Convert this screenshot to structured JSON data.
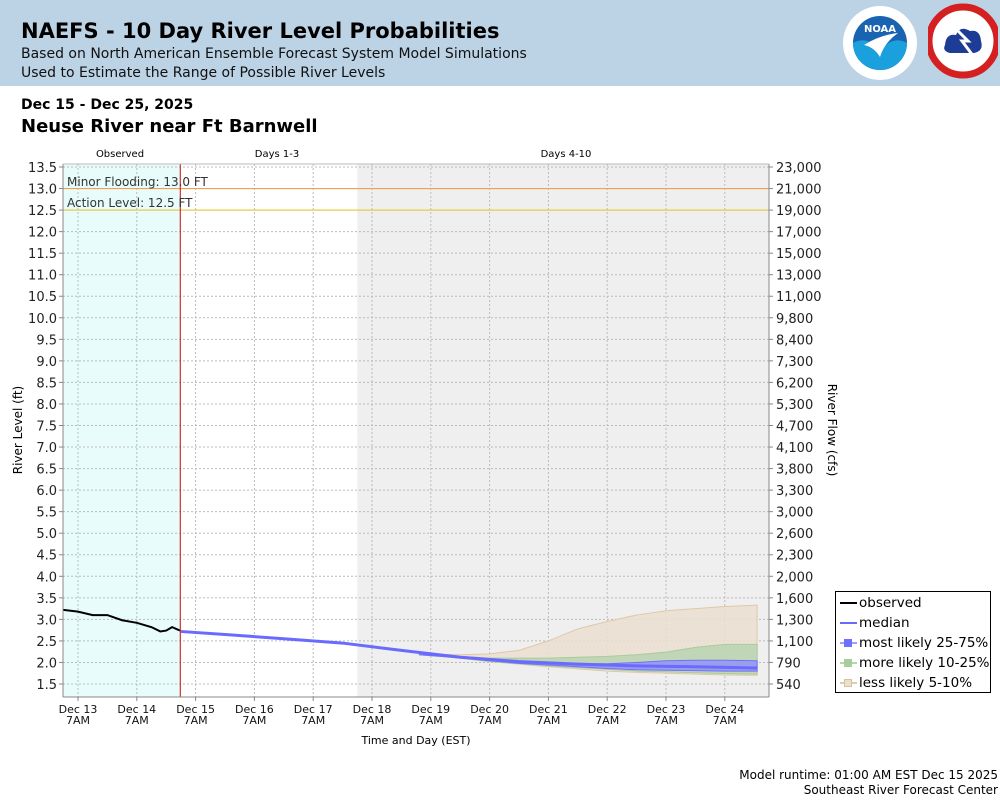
{
  "header": {
    "title": "NAEFS - 10 Day River Level Probabilities",
    "subtitle1": "Based on North American Ensemble Forecast System Model Simulations",
    "subtitle2": "Used to Estimate the Range of Possible River Levels",
    "logos": [
      "NOAA",
      "NATIONAL WEATHER SERVICE"
    ]
  },
  "date_range": "Dec 15 - Dec 25, 2025",
  "location": "Neuse River near Ft Barnwell",
  "footer": {
    "runtime": "Model runtime: 01:00 AM EST Dec 15 2025",
    "center": "Southeast River Forecast Center"
  },
  "colors": {
    "header_bg": "#bcd2e5",
    "observed_bg": "#e8fcfc",
    "days410_bg": "#efefef",
    "minor_flood": "#f0a050",
    "action": "#e8c840",
    "now_line": "#d03030",
    "observed": "#000000",
    "median": "#6a6aff",
    "band_25_75": "#8c8cff",
    "band_10_25": "#b8d4b0",
    "band_5_10": "#eadfd0"
  },
  "chart_data": {
    "type": "area",
    "title": "Neuse River near Ft Barnwell",
    "xlabel": "Time and Day (EST)",
    "ylabel": "River Level (ft)",
    "y2label": "River Flow (cfs)",
    "ylim": [
      1.2,
      13.57
    ],
    "grid": true,
    "legend_position": "bottom-right-outside",
    "section_labels": [
      "Observed",
      "Days 1-3",
      "Days 4-10"
    ],
    "x_ticks": [
      {
        "day": 0,
        "l1": "Dec 13",
        "l2": "7AM"
      },
      {
        "day": 1,
        "l1": "Dec 14",
        "l2": "7AM"
      },
      {
        "day": 2,
        "l1": "Dec 15",
        "l2": "7AM"
      },
      {
        "day": 3,
        "l1": "Dec 16",
        "l2": "7AM"
      },
      {
        "day": 4,
        "l1": "Dec 17",
        "l2": "7AM"
      },
      {
        "day": 5,
        "l1": "Dec 18",
        "l2": "7AM"
      },
      {
        "day": 6,
        "l1": "Dec 19",
        "l2": "7AM"
      },
      {
        "day": 7,
        "l1": "Dec 20",
        "l2": "7AM"
      },
      {
        "day": 8,
        "l1": "Dec 21",
        "l2": "7AM"
      },
      {
        "day": 9,
        "l1": "Dec 22",
        "l2": "7AM"
      },
      {
        "day": 10,
        "l1": "Dec 23",
        "l2": "7AM"
      },
      {
        "day": 11,
        "l1": "Dec 24",
        "l2": "7AM"
      }
    ],
    "y_ticks": [
      "13.5",
      "13.0",
      "12.5",
      "12.0",
      "11.5",
      "11.0",
      "10.5",
      "10.0",
      "9.5",
      "9.0",
      "8.5",
      "8.0",
      "7.5",
      "7.0",
      "6.5",
      "6.0",
      "5.5",
      "5.0",
      "4.5",
      "4.0",
      "3.5",
      "3.0",
      "2.5",
      "2.0",
      "1.5"
    ],
    "y2_ticks": [
      "23,000",
      "21,000",
      "19,000",
      "17,000",
      "15,000",
      "13,000",
      "11,000",
      "9,800",
      "8,400",
      "7,300",
      "6,200",
      "5,300",
      "4,700",
      "4,100",
      "3,800",
      "3,300",
      "3,000",
      "2,600",
      "2,300",
      "2,000",
      "1,600",
      "1,300",
      "1,100",
      "790",
      "540"
    ],
    "thresholds": [
      {
        "label": "Minor Flooding: 13.0 FT",
        "value": 13.0
      },
      {
        "label": "Action Level: 12.5 FT",
        "value": 12.5
      }
    ],
    "observed_end_day": 1.74,
    "days410_start_day": 4.75,
    "x_range_days": [
      -0.25,
      11.75
    ],
    "series": [
      {
        "name": "observed",
        "x": [
          -0.25,
          0.0,
          0.25,
          0.5,
          0.75,
          1.0,
          1.25,
          1.4,
          1.5,
          1.6,
          1.7,
          1.74
        ],
        "values": [
          3.22,
          3.18,
          3.1,
          3.1,
          2.98,
          2.92,
          2.82,
          2.72,
          2.74,
          2.82,
          2.76,
          2.74
        ]
      },
      {
        "name": "median",
        "x": [
          1.74,
          2.5,
          3.5,
          4.5,
          5.5,
          6.5,
          7.5,
          8.5,
          9.5,
          10.5,
          11.55
        ],
        "values": [
          2.72,
          2.65,
          2.55,
          2.45,
          2.28,
          2.12,
          2.02,
          1.96,
          1.92,
          1.9,
          1.87
        ]
      }
    ],
    "bands": [
      {
        "name": "less likely 5-10%",
        "x": [
          5.8,
          6.5,
          7.0,
          7.5,
          8.0,
          8.5,
          9.0,
          9.5,
          10.0,
          10.5,
          11.0,
          11.55
        ],
        "upper": [
          2.2,
          2.18,
          2.2,
          2.28,
          2.5,
          2.78,
          2.95,
          3.1,
          3.2,
          3.25,
          3.3,
          3.33
        ],
        "lower": [
          2.18,
          2.1,
          2.02,
          1.96,
          1.9,
          1.85,
          1.8,
          1.77,
          1.75,
          1.73,
          1.71,
          1.7
        ]
      },
      {
        "name": "more likely 10-25%",
        "x": [
          5.8,
          6.5,
          7.0,
          7.5,
          8.0,
          8.5,
          9.0,
          9.5,
          10.0,
          10.5,
          11.0,
          11.55
        ],
        "upper": [
          2.18,
          2.14,
          2.1,
          2.1,
          2.1,
          2.12,
          2.14,
          2.18,
          2.24,
          2.35,
          2.42,
          2.42
        ],
        "lower": [
          2.18,
          2.1,
          2.02,
          1.97,
          1.92,
          1.88,
          1.84,
          1.8,
          1.78,
          1.76,
          1.74,
          1.73
        ]
      },
      {
        "name": "most likely 25-75%",
        "x": [
          5.8,
          6.5,
          7.0,
          7.5,
          8.0,
          8.5,
          9.0,
          9.5,
          10.0,
          10.5,
          11.0,
          11.55
        ],
        "upper": [
          2.18,
          2.13,
          2.06,
          2.02,
          1.99,
          1.97,
          1.97,
          2.0,
          2.04,
          2.05,
          2.05,
          2.04
        ],
        "lower": [
          2.18,
          2.11,
          2.04,
          1.98,
          1.94,
          1.9,
          1.86,
          1.83,
          1.82,
          1.81,
          1.8,
          1.8
        ]
      }
    ],
    "legend": [
      "observed",
      "median",
      "most likely 25-75%",
      "more likely 10-25%",
      "less likely 5-10%"
    ]
  }
}
